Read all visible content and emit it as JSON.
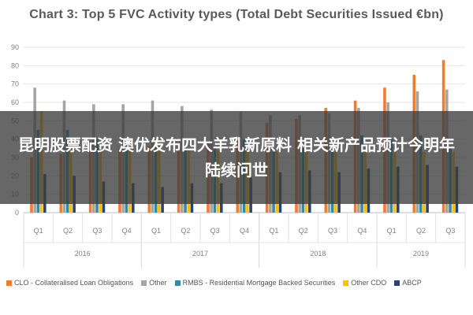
{
  "banner": {
    "text": "昆明股票配资 澳优发布四大羊乳新原料 相关新产品预计今明年陆续问世"
  },
  "chart_data": {
    "type": "bar",
    "title": "Chart 3: Top 5 FVC Activity types (Total Debt Securities Issued €bn)",
    "xlabel": "",
    "ylabel": "",
    "ylim": [
      0,
      90
    ],
    "yticks": [
      0,
      10,
      20,
      30,
      40,
      50,
      60,
      70,
      80,
      90
    ],
    "grid": true,
    "legend_position": "bottom",
    "categories": [
      "Q1",
      "Q2",
      "Q3",
      "Q4",
      "Q1",
      "Q2",
      "Q3",
      "Q4",
      "Q1",
      "Q2",
      "Q3",
      "Q4",
      "Q1",
      "Q2",
      "Q3"
    ],
    "groups": [
      {
        "label": "2016",
        "count": 4
      },
      {
        "label": "2017",
        "count": 4
      },
      {
        "label": "2018",
        "count": 4
      },
      {
        "label": "2019",
        "count": 3
      }
    ],
    "series": [
      {
        "name": "CLO - Collateralised Loan Obligations",
        "color": "#ED7D31",
        "values": [
          30,
          32,
          33,
          35,
          36,
          37,
          38,
          41,
          49,
          51,
          57,
          61,
          68,
          75,
          83
        ]
      },
      {
        "name": "Other",
        "color": "#A5A5A5",
        "values": [
          68,
          61,
          59,
          59,
          61,
          58,
          56,
          55,
          53,
          53,
          54,
          57,
          60,
          66,
          67
        ]
      },
      {
        "name": "RMBS - Residential Mortgage Backed Securities",
        "color": "#2F8BAE",
        "values": [
          45,
          45,
          40,
          40,
          37,
          37,
          35,
          40,
          33,
          35,
          37,
          42,
          40,
          42,
          36
        ]
      },
      {
        "name": "Other CDO",
        "color": "#FFC000",
        "values": [
          55,
          37,
          37,
          37,
          37,
          34,
          34,
          35,
          33,
          33,
          33,
          33,
          33,
          33,
          33
        ]
      },
      {
        "name": "ABCP",
        "color": "#264478",
        "values": [
          21,
          20,
          17,
          16,
          14,
          16,
          16,
          19,
          22,
          23,
          22,
          24,
          25,
          26,
          25
        ]
      }
    ]
  }
}
